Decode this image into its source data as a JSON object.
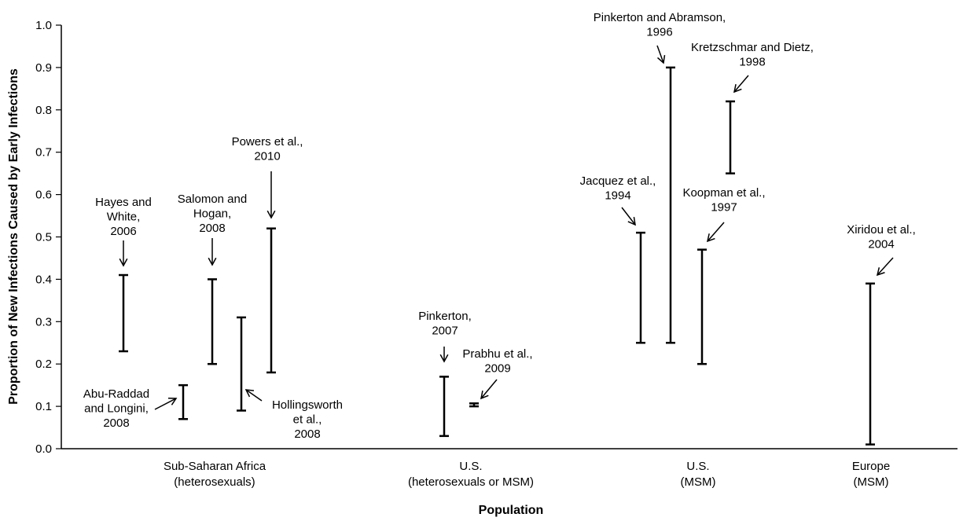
{
  "chart_data": {
    "type": "range",
    "xlabel": "Population",
    "ylabel": "Proportion of New Infections Caused by Early Infections",
    "ylim": [
      0.0,
      1.0
    ],
    "yticks": [
      "0.0",
      "0.1",
      "0.2",
      "0.3",
      "0.4",
      "0.5",
      "0.6",
      "0.7",
      "0.8",
      "0.9",
      "1.0"
    ],
    "grid": false,
    "categories": [
      {
        "lines": [
          "Sub-Saharan Africa",
          "(heterosexuals)"
        ]
      },
      {
        "lines": [
          "U.S.",
          "(heterosexuals or MSM)"
        ]
      },
      {
        "lines": [
          "U.S.",
          "(MSM)"
        ]
      },
      {
        "lines": [
          "Europe",
          "(MSM)"
        ]
      }
    ],
    "ranges": [
      {
        "category": "Sub-Saharan Africa (heterosexuals)",
        "label": [
          "Hayes and",
          "White,",
          "2006"
        ],
        "low": 0.23,
        "high": 0.41
      },
      {
        "category": "Sub-Saharan Africa (heterosexuals)",
        "label": [
          "Abu-Raddad",
          "and Longini,",
          "2008"
        ],
        "low": 0.07,
        "high": 0.15
      },
      {
        "category": "Sub-Saharan Africa (heterosexuals)",
        "label": [
          "Salomon and",
          "Hogan,",
          "2008"
        ],
        "low": 0.2,
        "high": 0.4
      },
      {
        "category": "Sub-Saharan Africa (heterosexuals)",
        "label": [
          "Hollingsworth",
          "et al.,",
          "2008"
        ],
        "low": 0.09,
        "high": 0.31
      },
      {
        "category": "Sub-Saharan Africa (heterosexuals)",
        "label": [
          "Powers et al.,",
          "2010"
        ],
        "low": 0.18,
        "high": 0.52
      },
      {
        "category": "U.S. (heterosexuals or MSM)",
        "label": [
          "Pinkerton,",
          "2007"
        ],
        "low": 0.03,
        "high": 0.17
      },
      {
        "category": "U.S. (heterosexuals or MSM)",
        "label": [
          "Prabhu et al.,",
          "2009"
        ],
        "low": 0.1,
        "high": 0.107
      },
      {
        "category": "U.S. (MSM)",
        "label": [
          "Jacquez et al.,",
          "1994"
        ],
        "low": 0.25,
        "high": 0.51
      },
      {
        "category": "U.S. (MSM)",
        "label": [
          "Pinkerton and Abramson,",
          "1996"
        ],
        "low": 0.25,
        "high": 0.9
      },
      {
        "category": "U.S. (MSM)",
        "label": [
          "Koopman et al.,",
          "1997"
        ],
        "low": 0.2,
        "high": 0.47
      },
      {
        "category": "U.S. (MSM)",
        "label": [
          "Kretzschmar and Dietz,",
          "1998"
        ],
        "low": 0.65,
        "high": 0.82
      },
      {
        "category": "Europe (MSM)",
        "label": [
          "Xiridou et al.,",
          "2004"
        ],
        "low": 0.01,
        "high": 0.39
      }
    ]
  }
}
